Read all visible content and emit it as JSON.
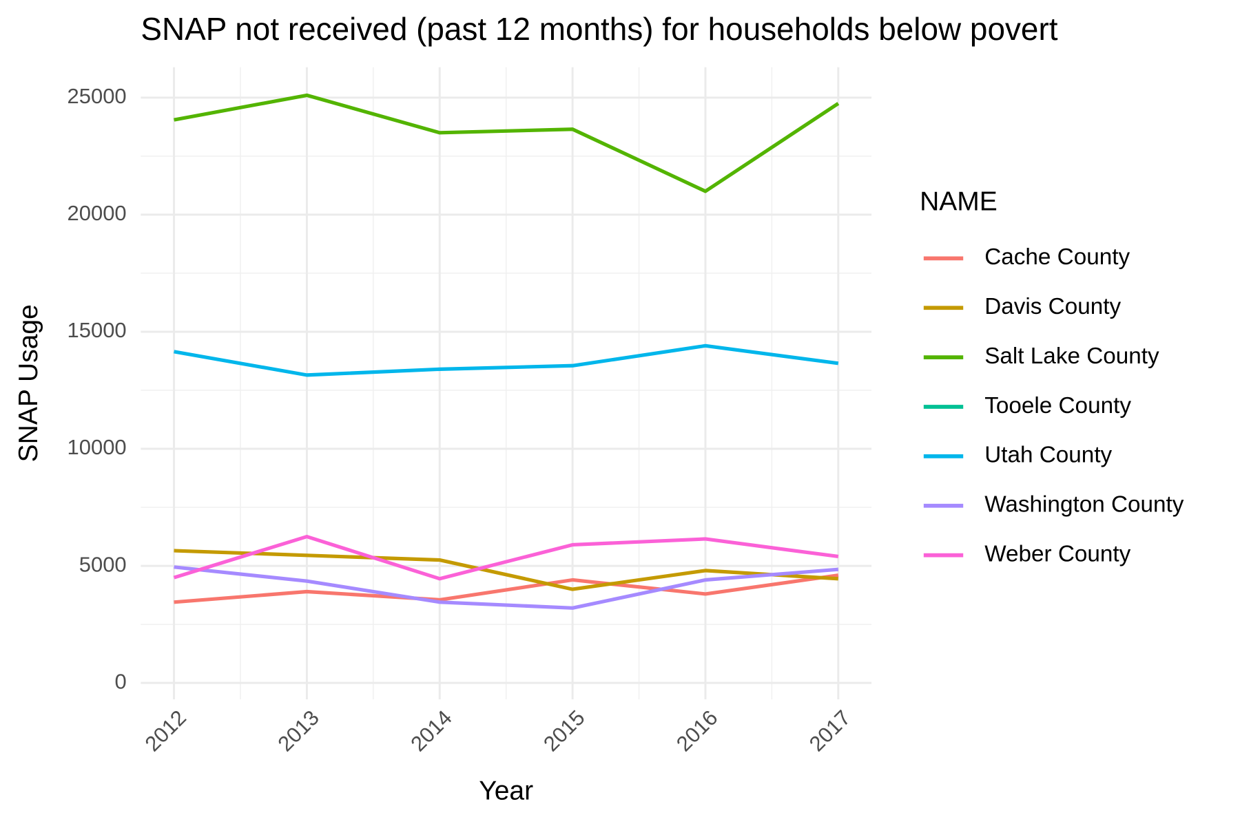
{
  "chart_data": {
    "type": "line",
    "title": "SNAP not received (past 12 months) for households below povert",
    "x_label": "Year",
    "y_label": "SNAP Usage",
    "legend_title": "NAME",
    "x": [
      2012,
      2013,
      2014,
      2015,
      2016,
      2017
    ],
    "xlim": [
      2011.75,
      2017.25
    ],
    "xticks": [
      2012,
      2013,
      2014,
      2015,
      2016,
      2017
    ],
    "ylim": [
      -700,
      26300
    ],
    "yticks": [
      0,
      5000,
      10000,
      15000,
      20000,
      25000
    ],
    "grid": true,
    "legend": "right",
    "series": [
      {
        "name": "Cache County",
        "color": "#F8766D",
        "values": [
          3450,
          3900,
          3550,
          4400,
          3800,
          4600
        ]
      },
      {
        "name": "Davis County",
        "color": "#C49A00",
        "values": [
          5650,
          5450,
          5250,
          4000,
          4800,
          4450
        ]
      },
      {
        "name": "Salt Lake County",
        "color": "#53B400",
        "values": [
          24050,
          25100,
          23500,
          23650,
          21000,
          24750
        ]
      },
      {
        "name": "Tooele County",
        "color": "#00C094",
        "values": [
          null,
          null,
          null,
          null,
          null,
          null
        ]
      },
      {
        "name": "Utah County",
        "color": "#00B6EB",
        "values": [
          14150,
          13150,
          13400,
          13550,
          14400,
          13650
        ]
      },
      {
        "name": "Washington County",
        "color": "#A58AFF",
        "values": [
          4950,
          4350,
          3450,
          3200,
          4400,
          4850
        ]
      },
      {
        "name": "Weber County",
        "color": "#FB61D7",
        "values": [
          4500,
          6250,
          4450,
          5900,
          6150,
          5400
        ]
      }
    ]
  }
}
